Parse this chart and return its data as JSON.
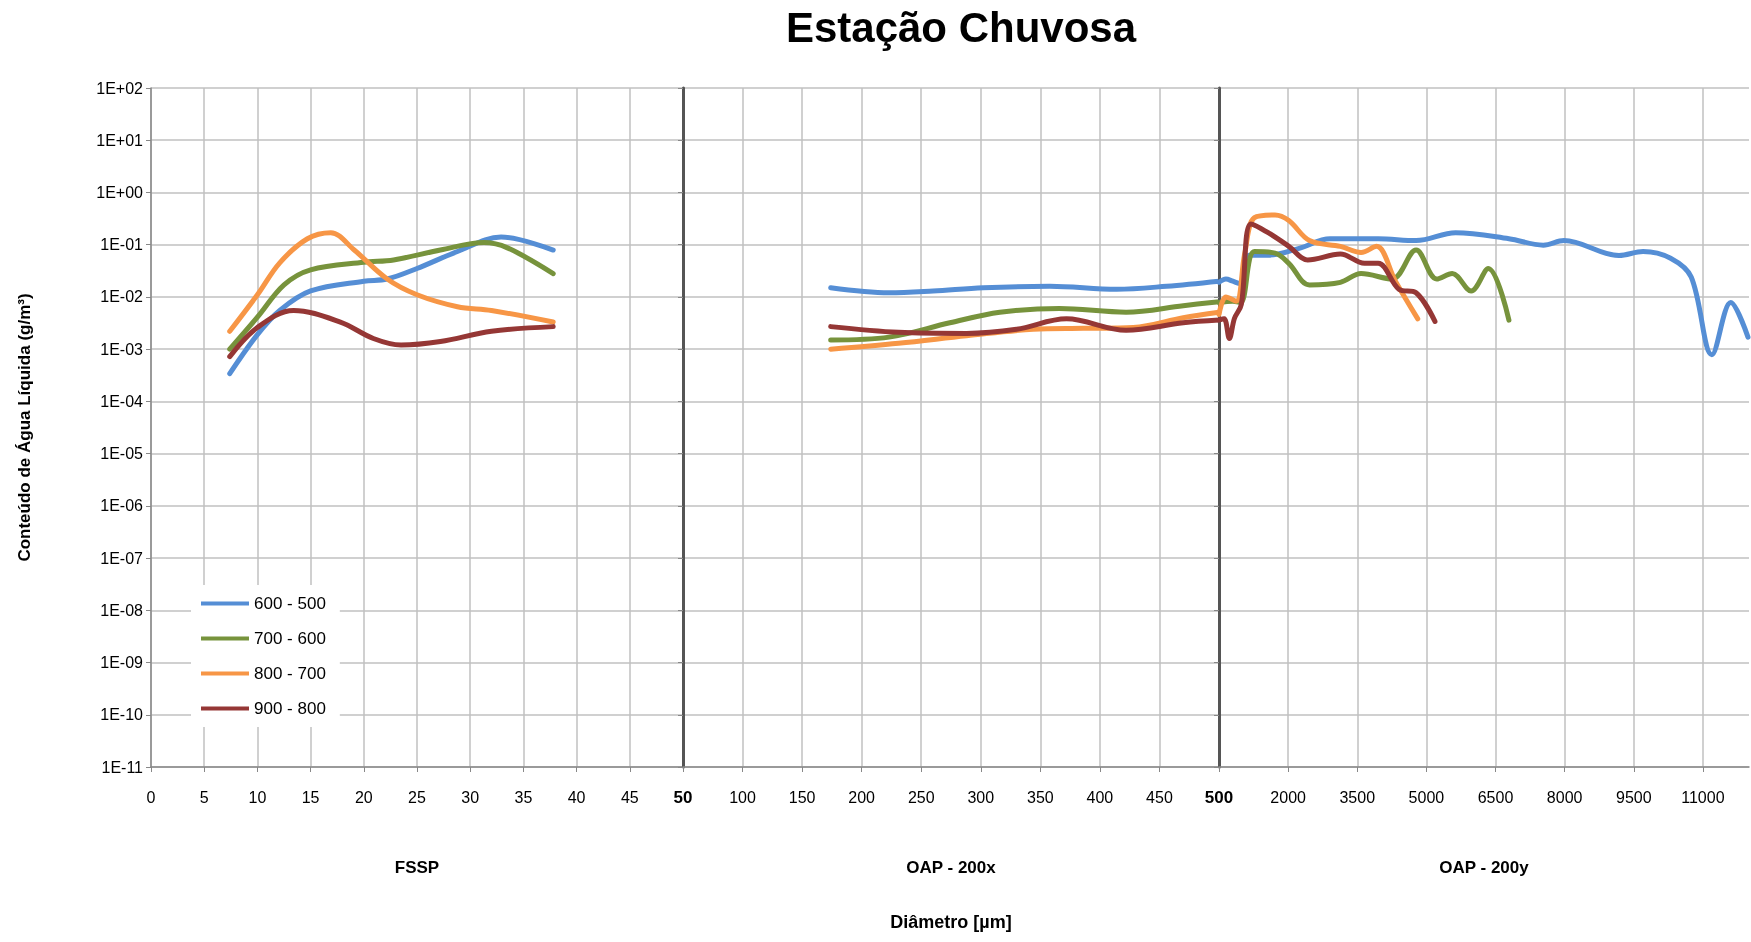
{
  "chart_data": [
    {
      "type": "line",
      "ylabel": "Conteúdo de Água Líquida (g/m³)",
      "xlabel": "FSSP",
      "log": "y",
      "grid": true,
      "legend": "bottom left",
      "marker": "none",
      "xlim": [
        0,
        50
      ],
      "xticks": [
        0,
        5,
        10,
        15,
        20,
        25,
        30,
        35,
        40,
        45,
        50
      ],
      "ylim": [
        1e-11,
        100
      ],
      "yticks": [
        {
          "value": 100,
          "label": "1E+02"
        },
        {
          "value": 10,
          "label": "1E+01"
        },
        {
          "value": 1,
          "label": "1E+00"
        },
        {
          "value": 0.1,
          "label": "1E-01"
        },
        {
          "value": 0.01,
          "label": "1E-02"
        },
        {
          "value": 0.001,
          "label": "1E-03"
        },
        {
          "value": 0.0001,
          "label": "1E-04"
        },
        {
          "value": 1e-05,
          "label": "1E-05"
        },
        {
          "value": 1e-06,
          "label": "1E-06"
        },
        {
          "value": 1e-07,
          "label": "1E-07"
        },
        {
          "value": 1e-08,
          "label": "1E-08"
        },
        {
          "value": 1e-09,
          "label": "1E-09"
        },
        {
          "value": 1e-10,
          "label": "1E-10"
        },
        {
          "value": 1e-11,
          "label": "1E-11"
        }
      ],
      "series": [
        {
          "name": "600 - 500",
          "color": "#558ed5",
          "x": [
            7.4,
            10,
            12.1,
            15,
            20,
            22.2,
            25,
            28.8,
            32.9,
            37.8
          ],
          "values": [
            0.00034,
            0.0019,
            0.0055,
            0.013,
            0.02,
            0.022,
            0.035,
            0.074,
            0.14,
            0.079
          ]
        },
        {
          "name": "700 - 600",
          "color": "#77933c",
          "x": [
            7.4,
            10,
            12.5,
            15,
            20,
            22.8,
            27.2,
            31.3,
            33.5,
            37.8
          ],
          "values": [
            0.001,
            0.0041,
            0.017,
            0.033,
            0.046,
            0.051,
            0.079,
            0.11,
            0.087,
            0.028
          ]
        },
        {
          "name": "800 - 700",
          "color": "#f79646",
          "x": [
            7.4,
            10,
            12.1,
            14.7,
            16.9,
            19.1,
            22.2,
            25,
            28.8,
            32,
            37.8
          ],
          "values": [
            0.0022,
            0.011,
            0.045,
            0.13,
            0.17,
            0.079,
            0.022,
            0.011,
            0.0065,
            0.0055,
            0.0033
          ]
        },
        {
          "name": "900 - 800",
          "color": "#953735",
          "x": [
            7.4,
            10,
            13.4,
            17.8,
            20.9,
            23.5,
            27.2,
            32,
            37.8
          ],
          "values": [
            0.00072,
            0.0026,
            0.0055,
            0.0033,
            0.0016,
            0.0012,
            0.0014,
            0.0022,
            0.0027
          ]
        }
      ]
    },
    {
      "type": "line",
      "title": "Estação Chuvosa",
      "xlabel": "OAP - 200x",
      "annotations": [
        "Diâmetro [µm]"
      ],
      "log": "y",
      "grid": true,
      "marker": "none",
      "tick_labels": "x",
      "xlim": [
        50,
        500
      ],
      "xticks": [
        {
          "value": 50,
          "label": null
        },
        100,
        150,
        200,
        250,
        300,
        350,
        400,
        450,
        500
      ],
      "ylim": [
        1e-11,
        100
      ],
      "yticks": [
        {
          "value": 100,
          "label": null
        },
        {
          "value": 10,
          "label": null
        },
        {
          "value": 1,
          "label": null
        },
        {
          "value": 0.1,
          "label": null
        },
        {
          "value": 0.01,
          "label": null
        },
        {
          "value": 0.001,
          "label": null
        },
        {
          "value": 0.0001,
          "label": null
        },
        {
          "value": 1e-05,
          "label": null
        },
        {
          "value": 1e-06,
          "label": null
        },
        {
          "value": 1e-07,
          "label": null
        },
        {
          "value": 1e-08,
          "label": null
        },
        {
          "value": 1e-09,
          "label": null
        },
        {
          "value": 1e-10,
          "label": null
        },
        {
          "value": 1e-11,
          "label": null
        }
      ],
      "series": [
        {
          "color": "#558ed5",
          "x": [
            174,
            223,
            260,
            302,
            358,
            414,
            456,
            500
          ],
          "values": [
            0.015,
            0.012,
            0.013,
            0.015,
            0.016,
            0.014,
            0.016,
            0.02
          ]
        },
        {
          "color": "#77933c",
          "x": [
            174,
            223,
            274,
            316,
            366,
            422,
            470,
            500
          ],
          "values": [
            0.0015,
            0.0017,
            0.0032,
            0.0051,
            0.006,
            0.0051,
            0.0068,
            0.0081
          ]
        },
        {
          "color": "#f79646",
          "x": [
            174,
            231,
            288,
            344,
            386,
            428,
            470,
            500
          ],
          "values": [
            0.001,
            0.0013,
            0.0018,
            0.0024,
            0.0025,
            0.0026,
            0.004,
            0.0051
          ]
        },
        {
          "color": "#953735",
          "x": [
            174,
            231,
            288,
            330,
            372,
            422,
            470,
            500
          ],
          "values": [
            0.0027,
            0.0021,
            0.002,
            0.0024,
            0.0038,
            0.0023,
            0.0032,
            0.0036
          ]
        }
      ]
    },
    {
      "type": "line",
      "xlabel": "OAP - 200y",
      "log": "y",
      "grid": true,
      "marker": "none",
      "tick_labels": "x",
      "xlim": [
        500,
        12000
      ],
      "xticks": [
        {
          "value": 500,
          "label": null
        },
        2000,
        3500,
        5000,
        6500,
        8000,
        9500,
        11000
      ],
      "ylim": [
        1e-11,
        100
      ],
      "yticks": [
        {
          "value": 100,
          "label": null
        },
        {
          "value": 10,
          "label": null
        },
        {
          "value": 1,
          "label": null
        },
        {
          "value": 0.1,
          "label": null
        },
        {
          "value": 0.01,
          "label": null
        },
        {
          "value": 0.001,
          "label": null
        },
        {
          "value": 0.0001,
          "label": null
        },
        {
          "value": 1e-05,
          "label": null
        },
        {
          "value": 1e-06,
          "label": null
        },
        {
          "value": 1e-07,
          "label": null
        },
        {
          "value": 1e-08,
          "label": null
        },
        {
          "value": 1e-09,
          "label": null
        },
        {
          "value": 1e-10,
          "label": null
        },
        {
          "value": 1e-11,
          "label": null
        }
      ],
      "series": [
        {
          "color": "#558ed5",
          "x": [
            500,
            650,
            800,
            950,
            1157,
            1567,
            2239,
            2910,
            3955,
            4776,
            5634,
            6791,
            7537,
            7985,
            9179,
            9701,
            10298,
            10746,
            11194,
            11604,
            11978
          ],
          "values": [
            0.019,
            0.022,
            0.02,
            0.018,
            0.063,
            0.063,
            0.085,
            0.13,
            0.13,
            0.12,
            0.17,
            0.13,
            0.098,
            0.12,
            0.062,
            0.074,
            0.055,
            0.024,
            0.00078,
            0.0078,
            0.0017
          ]
        },
        {
          "color": "#77933c",
          "x": [
            500,
            800,
            970,
            1269,
            1716,
            2015,
            2463,
            3134,
            3582,
            4254,
            4776,
            5224,
            5560,
            5970,
            6343,
            6791
          ],
          "values": [
            0.0078,
            0.0083,
            0.0078,
            0.074,
            0.069,
            0.044,
            0.017,
            0.019,
            0.028,
            0.022,
            0.079,
            0.022,
            0.028,
            0.013,
            0.035,
            0.0036
          ]
        },
        {
          "color": "#f79646",
          "x": [
            500,
            650,
            873,
            1060,
            1269,
            1716,
            2015,
            2463,
            3134,
            3582,
            3918,
            4328,
            4813
          ],
          "values": [
            0.0046,
            0.01,
            0.0083,
            0.069,
            0.33,
            0.37,
            0.29,
            0.12,
            0.093,
            0.071,
            0.093,
            0.02,
            0.0038
          ]
        },
        {
          "color": "#953735",
          "x": [
            500,
            612,
            724,
            836,
            985,
            1194,
            1567,
            2015,
            2425,
            3134,
            3657,
            3955,
            4403,
            4776,
            5186
          ],
          "values": [
            0.0036,
            0.0038,
            0.0016,
            0.0039,
            0.0072,
            0.25,
            0.17,
            0.093,
            0.051,
            0.066,
            0.044,
            0.044,
            0.014,
            0.012,
            0.0034
          ]
        }
      ]
    }
  ]
}
